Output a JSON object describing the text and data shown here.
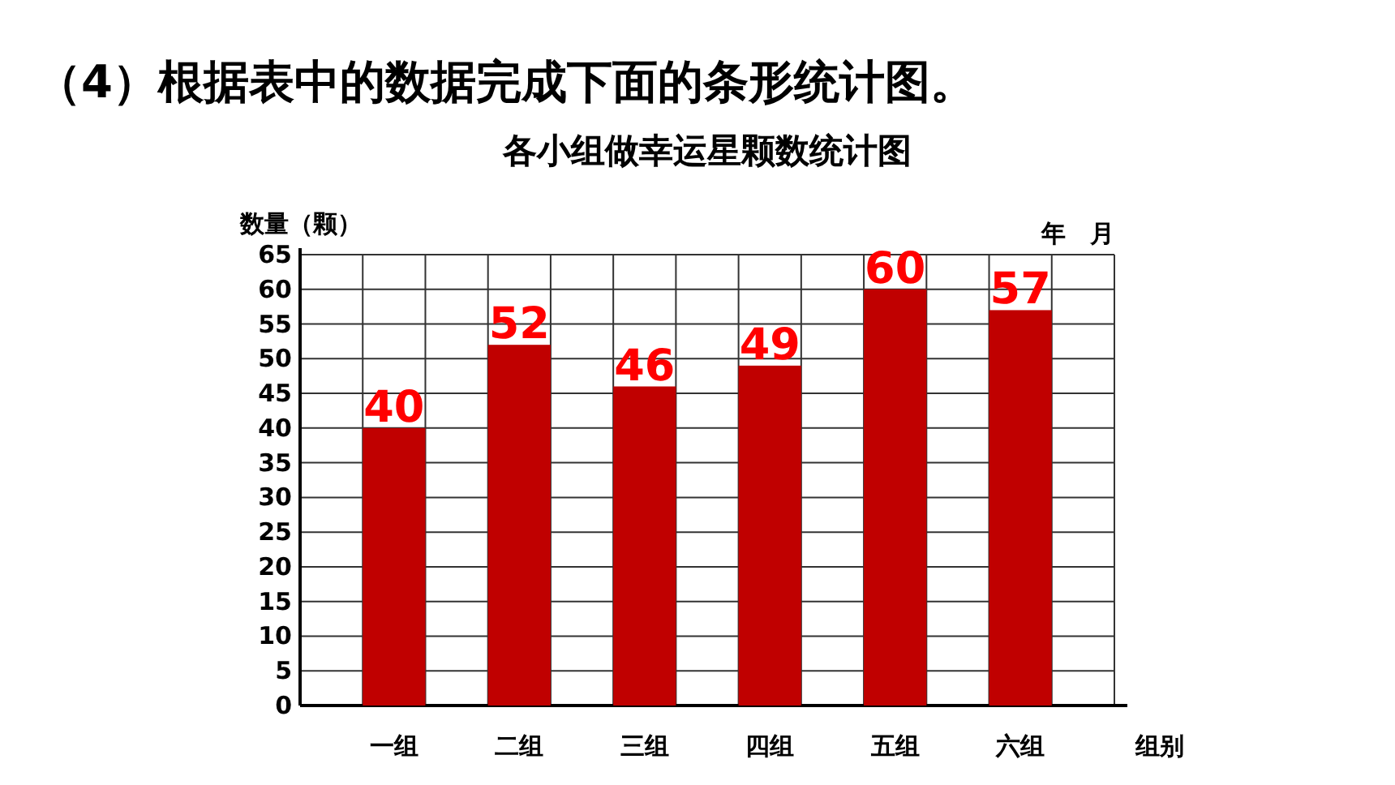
{
  "chart_data": {
    "type": "bar",
    "title": "（4）根据表中的数据完成下面的条形统计图。",
    "subtitle": "各小组做幸运星颗数统计图",
    "ylabel": "数量（颗）",
    "xlabel": "组别",
    "annotations": [
      "年　月"
    ],
    "categories": [
      "一组",
      "二组",
      "三组",
      "四组",
      "五组",
      "六组"
    ],
    "values": [
      40,
      52,
      46,
      49,
      60,
      57
    ],
    "color": "#c00000",
    "data_labels": true,
    "ylim": [
      0,
      65
    ],
    "yticks": [
      0,
      5,
      10,
      15,
      20,
      25,
      30,
      35,
      40,
      45,
      50,
      55,
      60,
      65
    ],
    "grid": true
  }
}
